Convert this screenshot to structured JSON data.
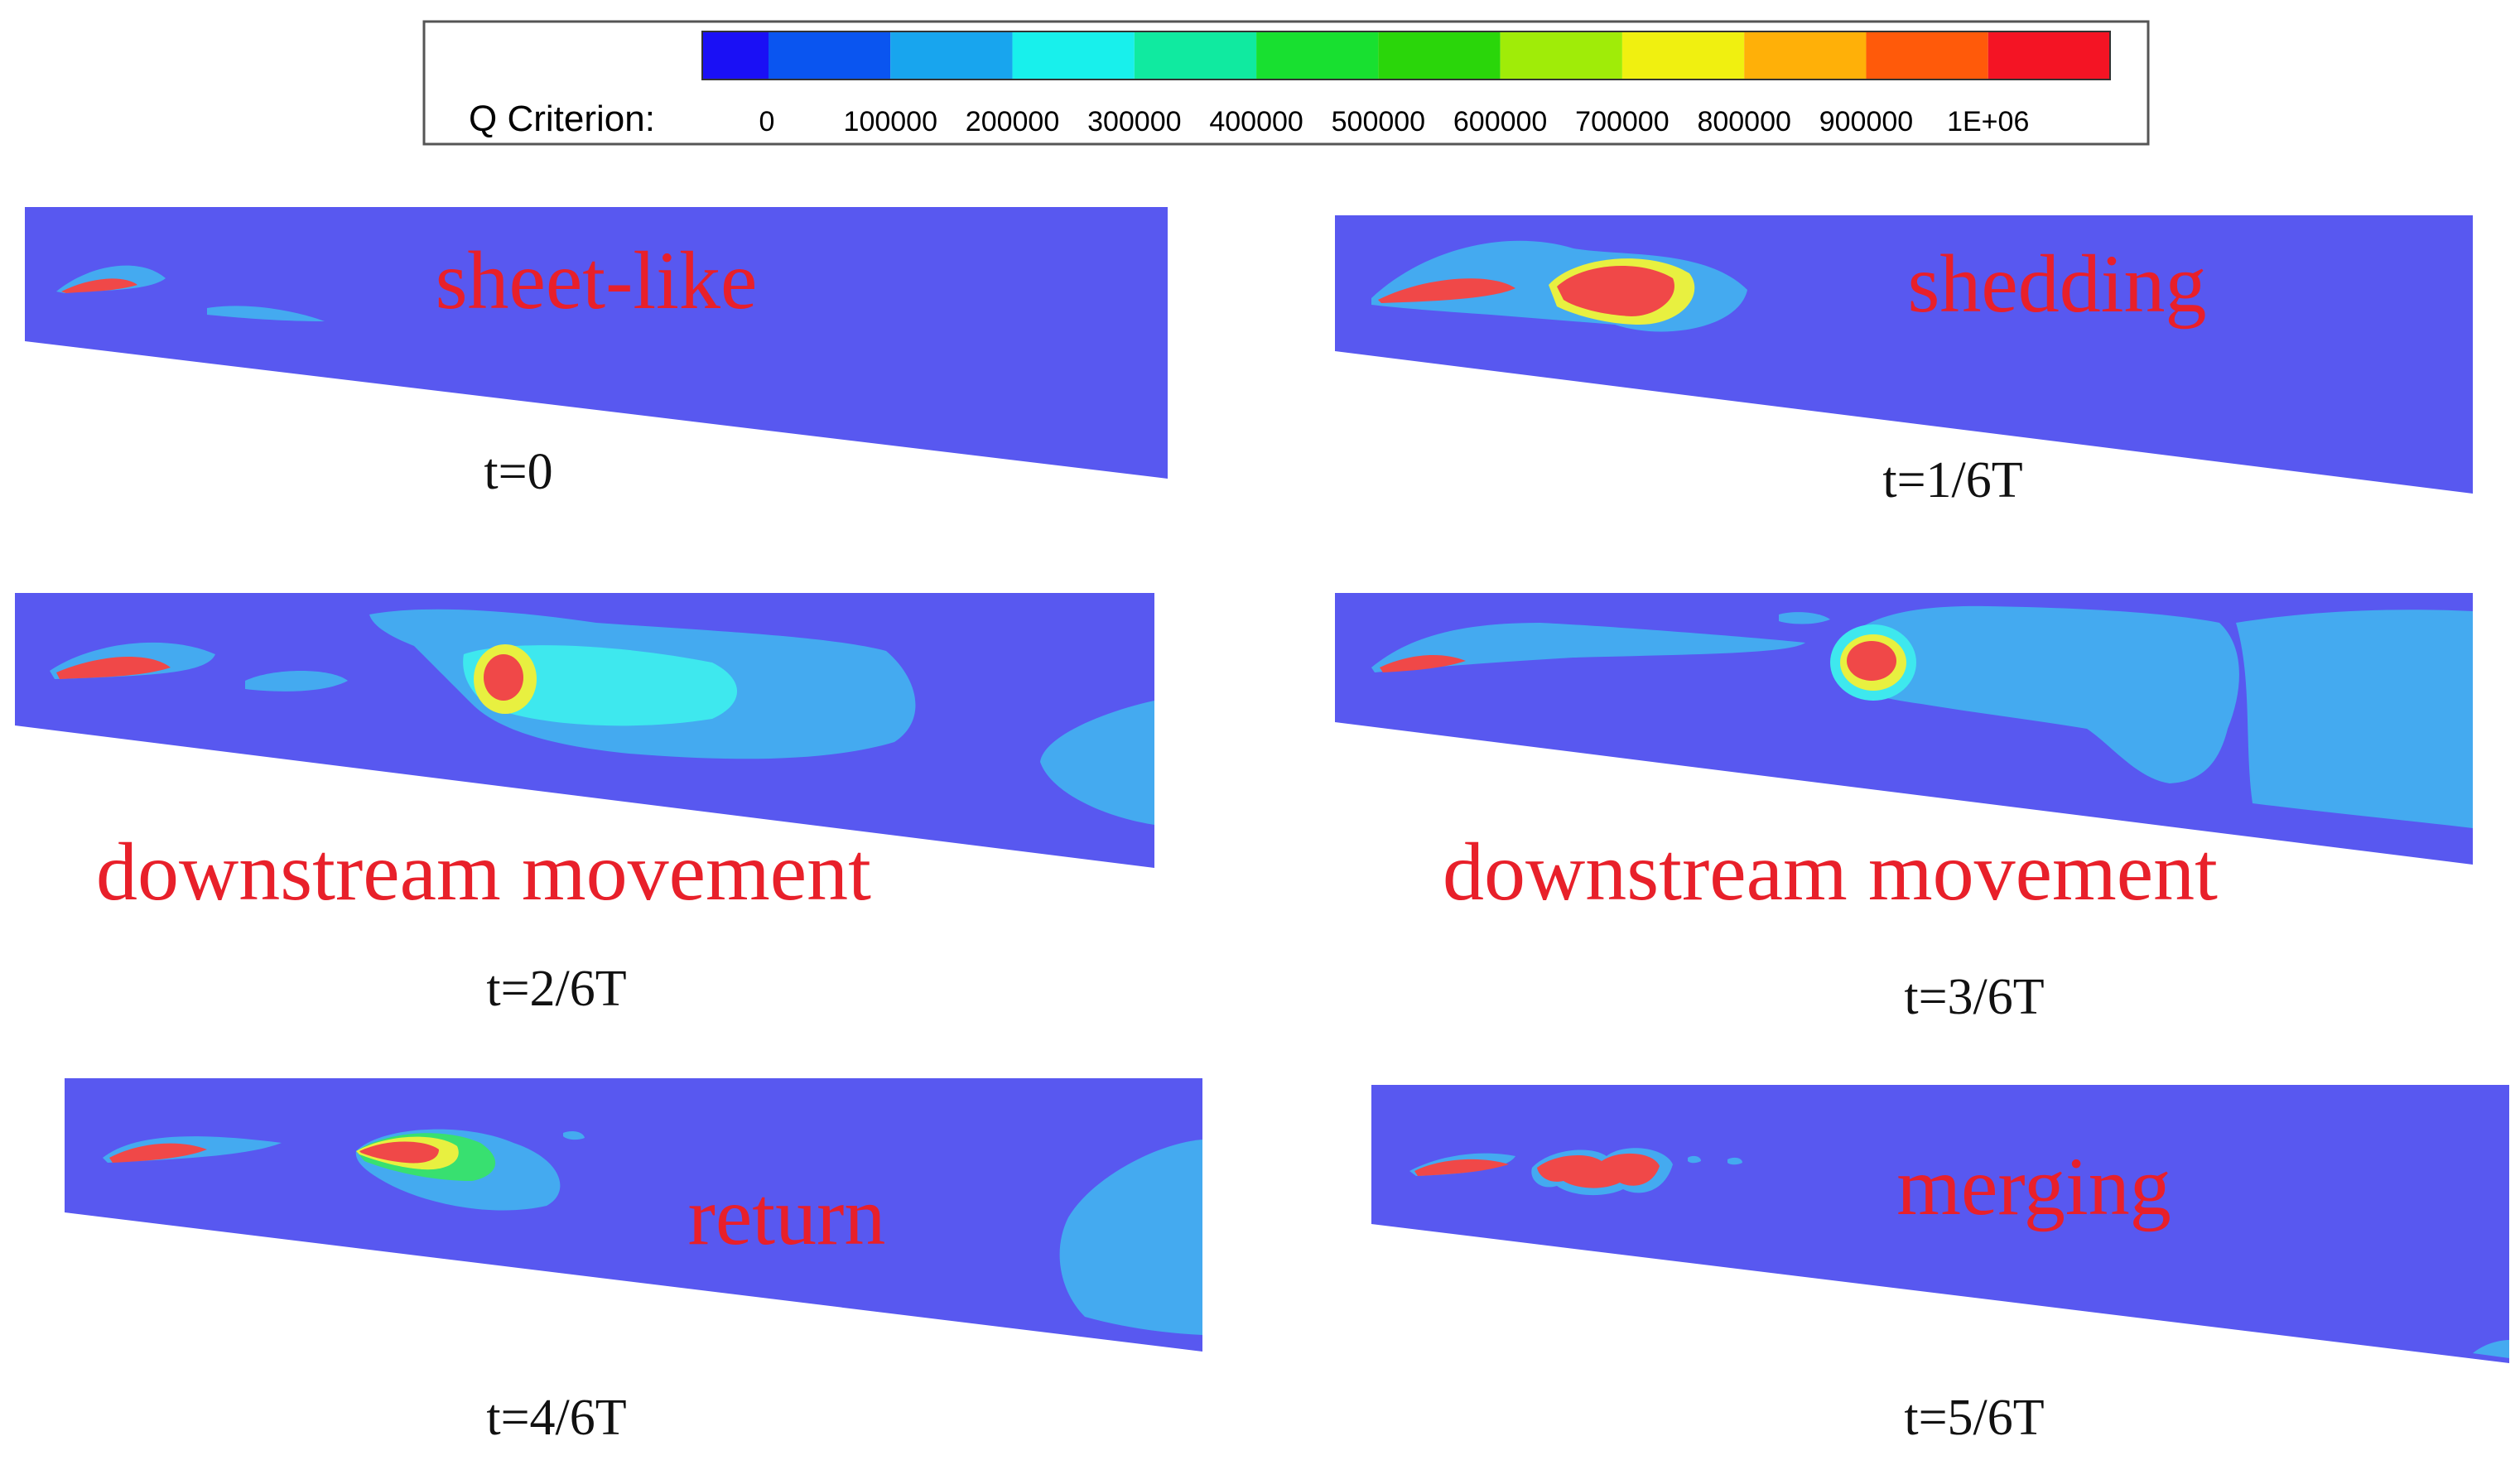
{
  "colorbar": {
    "label": "Q Criterion:",
    "ticks": [
      "0",
      "100000",
      "200000",
      "300000",
      "400000",
      "500000",
      "600000",
      "700000",
      "800000",
      "900000",
      "1E+06"
    ],
    "colors": [
      "#1a10f5",
      "#0a55f0",
      "#18a5ee",
      "#18f0ec",
      "#10eaa0",
      "#18e030",
      "#2ad60a",
      "#a0ec08",
      "#f0f010",
      "#ffb008",
      "#ff5a0a",
      "#f41424"
    ]
  },
  "panels": [
    {
      "phase": "sheet-like",
      "time": "t=0"
    },
    {
      "phase": "shedding",
      "time": "t=1/6T"
    },
    {
      "phase": "downstream movement",
      "time": "t=2/6T"
    },
    {
      "phase": "downstream movement",
      "time": "t=3/6T"
    },
    {
      "phase": "return",
      "time": "t=4/6T"
    },
    {
      "phase": "merging",
      "time": "t=5/6T"
    }
  ],
  "field_colors": {
    "background": "#5858f0",
    "low": "#44aaf0",
    "mid": "#3ee8ee",
    "green": "#38e070",
    "yellow": "#e8f040",
    "high": "#f04848"
  }
}
